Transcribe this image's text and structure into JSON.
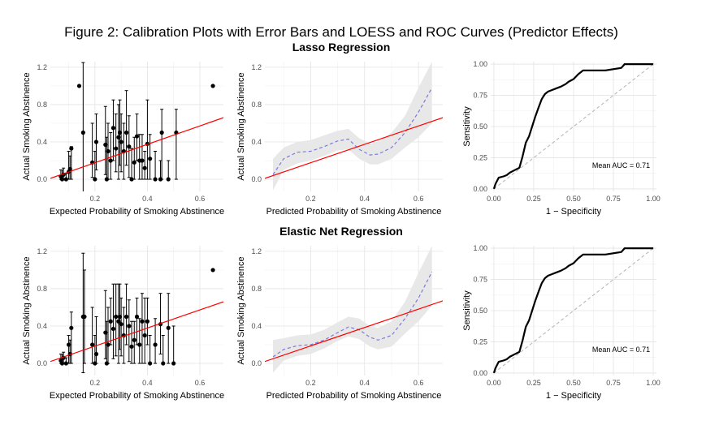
{
  "figure_title": "Figure 2: Calibration Plots with Error Bars and LOESS and ROC Curves (Predictor Effects)",
  "row_titles": [
    "Lasso Regression",
    "Elastic Net Regression"
  ],
  "colors": {
    "fit_line": "#ff0000",
    "loess": "#7b7bdc",
    "band": "#e8e8e8",
    "roc": "#000000",
    "diagonal": "#b3b3b3",
    "points": "#000000"
  },
  "chart_data": [
    {
      "type": "scatter",
      "name": "lasso-calibration-errorbars",
      "xlabel": "Expected Probability of Smoking Abstinence",
      "ylabel": "Actual Smoking Abstinence",
      "xlim": [
        0.03,
        0.69
      ],
      "ylim": [
        -0.13,
        1.26
      ],
      "xticks": [
        0.2,
        0.4,
        0.6
      ],
      "xtick_labels": [
        "0.2",
        "0.4",
        "0.6"
      ],
      "yticks": [
        0.0,
        0.4,
        0.8,
        1.2
      ],
      "ytick_labels": [
        "0.0",
        "0.4",
        "0.8",
        "1.2"
      ],
      "fit_line": [
        [
          0.03,
          0.01
        ],
        [
          0.69,
          0.66
        ]
      ],
      "points": [
        {
          "x": 0.07,
          "y": 0.03,
          "lo": 0.0,
          "hi": 0.1
        },
        {
          "x": 0.075,
          "y": 0.0,
          "lo": 0.0,
          "hi": 0.1
        },
        {
          "x": 0.08,
          "y": 0.05,
          "lo": 0.0,
          "hi": 0.12
        },
        {
          "x": 0.09,
          "y": 0.0,
          "lo": 0.0,
          "hi": 0.06
        },
        {
          "x": 0.1,
          "y": 0.08,
          "lo": 0.0,
          "hi": 0.3
        },
        {
          "x": 0.105,
          "y": 0.11,
          "lo": 0.0,
          "hi": 0.25
        },
        {
          "x": 0.11,
          "y": 0.33,
          "lo": 0.0,
          "hi": 0.35
        },
        {
          "x": 0.14,
          "y": 1.0,
          "lo": 1.0,
          "hi": 1.0
        },
        {
          "x": 0.155,
          "y": 0.5,
          "lo": -0.15,
          "hi": 1.25
        },
        {
          "x": 0.19,
          "y": 0.18,
          "lo": 0.02,
          "hi": 0.6
        },
        {
          "x": 0.2,
          "y": 0.0,
          "lo": 0.0,
          "hi": 0.3
        },
        {
          "x": 0.205,
          "y": 0.4,
          "lo": 0.1,
          "hi": 0.7
        },
        {
          "x": 0.24,
          "y": 0.37,
          "lo": 0.05,
          "hi": 0.78
        },
        {
          "x": 0.245,
          "y": 0.0,
          "lo": 0.0,
          "hi": 0.45
        },
        {
          "x": 0.25,
          "y": 0.3,
          "lo": 0.0,
          "hi": 0.6
        },
        {
          "x": 0.26,
          "y": 0.2,
          "lo": 0.0,
          "hi": 0.5
        },
        {
          "x": 0.27,
          "y": 0.55,
          "lo": 0.2,
          "hi": 0.85
        },
        {
          "x": 0.28,
          "y": 0.33,
          "lo": 0.08,
          "hi": 0.7
        },
        {
          "x": 0.29,
          "y": 0.45,
          "lo": 0.0,
          "hi": 0.8
        },
        {
          "x": 0.295,
          "y": 0.5,
          "lo": 0.15,
          "hi": 0.85
        },
        {
          "x": 0.3,
          "y": 0.4,
          "lo": 0.08,
          "hi": 0.7
        },
        {
          "x": 0.31,
          "y": 0.3,
          "lo": 0.0,
          "hi": 0.6
        },
        {
          "x": 0.32,
          "y": 0.5,
          "lo": 0.15,
          "hi": 0.95
        },
        {
          "x": 0.33,
          "y": 0.35,
          "lo": 0.02,
          "hi": 0.68
        },
        {
          "x": 0.34,
          "y": 0.0,
          "lo": 0.0,
          "hi": 0.33
        },
        {
          "x": 0.35,
          "y": 0.18,
          "lo": 0.0,
          "hi": 0.45
        },
        {
          "x": 0.36,
          "y": 0.46,
          "lo": 0.2,
          "hi": 0.7
        },
        {
          "x": 0.37,
          "y": 0.2,
          "lo": 0.0,
          "hi": 0.48
        },
        {
          "x": 0.38,
          "y": 0.2,
          "lo": 0.0,
          "hi": 0.48
        },
        {
          "x": 0.39,
          "y": 0.12,
          "lo": 0.0,
          "hi": 0.3
        },
        {
          "x": 0.4,
          "y": 0.38,
          "lo": 0.0,
          "hi": 0.85
        },
        {
          "x": 0.41,
          "y": 0.22,
          "lo": 0.0,
          "hi": 0.48
        },
        {
          "x": 0.43,
          "y": 0.0,
          "lo": 0.0,
          "hi": 0.3
        },
        {
          "x": 0.45,
          "y": 0.0,
          "lo": 0.0,
          "hi": 0.2
        },
        {
          "x": 0.455,
          "y": 0.5,
          "lo": 0.0,
          "hi": 0.75
        },
        {
          "x": 0.48,
          "y": 0.0,
          "lo": 0.0,
          "hi": 0.2
        },
        {
          "x": 0.51,
          "y": 0.5,
          "lo": 0.0,
          "hi": 0.75
        },
        {
          "x": 0.65,
          "y": 1.0,
          "lo": 1.0,
          "hi": 1.0
        }
      ]
    },
    {
      "type": "line",
      "name": "lasso-calibration-loess",
      "xlabel": "Predicted Probability of Smoking Abstinence",
      "ylabel": "Actual Smoking Abstinence",
      "xlim": [
        0.03,
        0.69
      ],
      "ylim": [
        -0.13,
        1.26
      ],
      "xticks": [
        0.2,
        0.4,
        0.6
      ],
      "xtick_labels": [
        "0.2",
        "0.4",
        "0.6"
      ],
      "yticks": [
        0.0,
        0.4,
        0.8,
        1.2
      ],
      "ytick_labels": [
        "0.0",
        "0.4",
        "0.8",
        "1.2"
      ],
      "fit_line": [
        [
          0.03,
          0.01
        ],
        [
          0.69,
          0.66
        ]
      ],
      "loess": {
        "x": [
          0.06,
          0.1,
          0.15,
          0.2,
          0.25,
          0.3,
          0.34,
          0.38,
          0.42,
          0.45,
          0.5,
          0.55,
          0.6,
          0.65
        ],
        "y": [
          0.05,
          0.22,
          0.29,
          0.3,
          0.35,
          0.41,
          0.43,
          0.32,
          0.26,
          0.27,
          0.34,
          0.5,
          0.72,
          0.98
        ],
        "lo": [
          -0.12,
          0.1,
          0.17,
          0.2,
          0.25,
          0.31,
          0.32,
          0.22,
          0.16,
          0.16,
          0.22,
          0.34,
          0.45,
          0.6
        ],
        "hi": [
          0.22,
          0.34,
          0.4,
          0.42,
          0.47,
          0.52,
          0.54,
          0.44,
          0.38,
          0.4,
          0.5,
          0.68,
          0.98,
          1.26
        ]
      }
    },
    {
      "type": "line",
      "name": "lasso-roc",
      "xlabel": "1 − Specificity",
      "ylabel": "Sensitivity",
      "xlim": [
        -0.02,
        1.02
      ],
      "ylim": [
        -0.02,
        1.02
      ],
      "xticks": [
        0,
        0.25,
        0.5,
        0.75,
        1
      ],
      "xtick_labels": [
        "0.00",
        "0.25",
        "0.50",
        "0.75",
        "1.00"
      ],
      "yticks": [
        0,
        0.25,
        0.5,
        0.75,
        1
      ],
      "ytick_labels": [
        "0.00",
        "0.25",
        "0.50",
        "0.75",
        "1.00"
      ],
      "annotation": "Mean AUC = 0.71",
      "roc": {
        "x": [
          0,
          0.01,
          0.03,
          0.06,
          0.08,
          0.1,
          0.13,
          0.16,
          0.18,
          0.2,
          0.22,
          0.24,
          0.26,
          0.28,
          0.3,
          0.32,
          0.34,
          0.36,
          0.38,
          0.42,
          0.45,
          0.47,
          0.5,
          0.53,
          0.56,
          0.6,
          0.7,
          0.8,
          0.82,
          0.9,
          1.0
        ],
        "y": [
          0,
          0.04,
          0.09,
          0.1,
          0.11,
          0.13,
          0.15,
          0.17,
          0.26,
          0.37,
          0.42,
          0.5,
          0.58,
          0.65,
          0.72,
          0.76,
          0.78,
          0.79,
          0.8,
          0.82,
          0.84,
          0.86,
          0.88,
          0.92,
          0.95,
          0.95,
          0.95,
          0.97,
          1.0,
          1.0,
          1.0
        ]
      }
    },
    {
      "type": "scatter",
      "name": "elasticnet-calibration-errorbars",
      "xlabel": "Expected Probability of Smoking Abstinence",
      "ylabel": "Actual Smoking Abstinence",
      "xlim": [
        0.03,
        0.69
      ],
      "ylim": [
        -0.13,
        1.26
      ],
      "xticks": [
        0.2,
        0.4,
        0.6
      ],
      "xtick_labels": [
        "0.2",
        "0.4",
        "0.6"
      ],
      "yticks": [
        0.0,
        0.4,
        0.8,
        1.2
      ],
      "ytick_labels": [
        "0.0",
        "0.4",
        "0.8",
        "1.2"
      ],
      "fit_line": [
        [
          0.03,
          0.02
        ],
        [
          0.69,
          0.66
        ]
      ],
      "points": [
        {
          "x": 0.07,
          "y": 0.03,
          "lo": 0.0,
          "hi": 0.1
        },
        {
          "x": 0.075,
          "y": 0.0,
          "lo": 0.0,
          "hi": 0.1
        },
        {
          "x": 0.08,
          "y": 0.06,
          "lo": 0.0,
          "hi": 0.12
        },
        {
          "x": 0.09,
          "y": 0.0,
          "lo": 0.0,
          "hi": 0.06
        },
        {
          "x": 0.1,
          "y": 0.2,
          "lo": 0.0,
          "hi": 0.3
        },
        {
          "x": 0.105,
          "y": 0.1,
          "lo": 0.0,
          "hi": 0.25
        },
        {
          "x": 0.11,
          "y": 0.38,
          "lo": 0.0,
          "hi": 0.55
        },
        {
          "x": 0.155,
          "y": 0.5,
          "lo": -0.1,
          "hi": 1.18
        },
        {
          "x": 0.16,
          "y": 0.5,
          "lo": 0.0,
          "hi": 1.0
        },
        {
          "x": 0.19,
          "y": 0.2,
          "lo": 0.0,
          "hi": 0.6
        },
        {
          "x": 0.2,
          "y": 0.0,
          "lo": 0.0,
          "hi": 0.3
        },
        {
          "x": 0.205,
          "y": 0.1,
          "lo": 0.0,
          "hi": 0.5
        },
        {
          "x": 0.24,
          "y": 0.33,
          "lo": 0.05,
          "hi": 0.78
        },
        {
          "x": 0.245,
          "y": 0.0,
          "lo": 0.0,
          "hi": 0.45
        },
        {
          "x": 0.25,
          "y": 0.2,
          "lo": 0.0,
          "hi": 0.6
        },
        {
          "x": 0.26,
          "y": 0.45,
          "lo": 0.2,
          "hi": 0.7
        },
        {
          "x": 0.27,
          "y": 0.37,
          "lo": 0.05,
          "hi": 0.85
        },
        {
          "x": 0.28,
          "y": 0.5,
          "lo": 0.08,
          "hi": 0.85
        },
        {
          "x": 0.29,
          "y": 0.45,
          "lo": 0.0,
          "hi": 0.85
        },
        {
          "x": 0.295,
          "y": 0.5,
          "lo": 0.15,
          "hi": 0.85
        },
        {
          "x": 0.3,
          "y": 0.42,
          "lo": 0.08,
          "hi": 0.7
        },
        {
          "x": 0.31,
          "y": 0.3,
          "lo": 0.0,
          "hi": 0.6
        },
        {
          "x": 0.32,
          "y": 0.5,
          "lo": 0.2,
          "hi": 0.85
        },
        {
          "x": 0.33,
          "y": 0.4,
          "lo": 0.02,
          "hi": 0.68
        },
        {
          "x": 0.34,
          "y": 0.18,
          "lo": 0.0,
          "hi": 0.45
        },
        {
          "x": 0.35,
          "y": 0.25,
          "lo": 0.0,
          "hi": 0.45
        },
        {
          "x": 0.36,
          "y": 0.5,
          "lo": 0.2,
          "hi": 0.7
        },
        {
          "x": 0.37,
          "y": 0.2,
          "lo": 0.0,
          "hi": 0.48
        },
        {
          "x": 0.38,
          "y": 0.45,
          "lo": 0.0,
          "hi": 0.75
        },
        {
          "x": 0.39,
          "y": 0.3,
          "lo": 0.0,
          "hi": 0.7
        },
        {
          "x": 0.4,
          "y": 0.45,
          "lo": 0.2,
          "hi": 0.7
        },
        {
          "x": 0.41,
          "y": 0.0,
          "lo": 0.0,
          "hi": 0.3
        },
        {
          "x": 0.43,
          "y": 0.2,
          "lo": 0.0,
          "hi": 0.48
        },
        {
          "x": 0.45,
          "y": 0.42,
          "lo": 0.1,
          "hi": 0.75
        },
        {
          "x": 0.46,
          "y": 0.0,
          "lo": 0.0,
          "hi": 0.3
        },
        {
          "x": 0.48,
          "y": 0.38,
          "lo": 0.0,
          "hi": 0.75
        },
        {
          "x": 0.5,
          "y": 0.0,
          "lo": 0.0,
          "hi": 0.4
        },
        {
          "x": 0.65,
          "y": 1.0,
          "lo": 1.0,
          "hi": 1.0
        }
      ]
    },
    {
      "type": "line",
      "name": "elasticnet-calibration-loess",
      "xlabel": "Predicted Probability of Smoking Abstinence",
      "ylabel": "Actual Smoking Abstinence",
      "xlim": [
        0.03,
        0.69
      ],
      "ylim": [
        -0.13,
        1.26
      ],
      "xticks": [
        0.2,
        0.4,
        0.6
      ],
      "xtick_labels": [
        "0.2",
        "0.4",
        "0.6"
      ],
      "yticks": [
        0.0,
        0.4,
        0.8,
        1.2
      ],
      "ytick_labels": [
        "0.0",
        "0.4",
        "0.8",
        "1.2"
      ],
      "fit_line": [
        [
          0.03,
          0.02
        ],
        [
          0.69,
          0.67
        ]
      ],
      "loess": {
        "x": [
          0.06,
          0.1,
          0.15,
          0.2,
          0.25,
          0.3,
          0.34,
          0.38,
          0.42,
          0.45,
          0.5,
          0.55,
          0.6,
          0.65
        ],
        "y": [
          0.07,
          0.15,
          0.19,
          0.2,
          0.25,
          0.33,
          0.39,
          0.36,
          0.28,
          0.25,
          0.3,
          0.48,
          0.7,
          0.98
        ],
        "lo": [
          -0.1,
          0.03,
          0.08,
          0.1,
          0.16,
          0.24,
          0.29,
          0.26,
          0.18,
          0.15,
          0.18,
          0.32,
          0.45,
          0.62
        ],
        "hi": [
          0.25,
          0.27,
          0.3,
          0.31,
          0.36,
          0.44,
          0.5,
          0.48,
          0.4,
          0.38,
          0.45,
          0.66,
          0.97,
          1.26
        ]
      }
    },
    {
      "type": "line",
      "name": "elasticnet-roc",
      "xlabel": "1 − Specificity",
      "ylabel": "Sensitivity",
      "xlim": [
        -0.02,
        1.02
      ],
      "ylim": [
        -0.02,
        1.02
      ],
      "xticks": [
        0,
        0.25,
        0.5,
        0.75,
        1
      ],
      "xtick_labels": [
        "0.00",
        "0.25",
        "0.50",
        "0.75",
        "1.00"
      ],
      "yticks": [
        0,
        0.25,
        0.5,
        0.75,
        1
      ],
      "ytick_labels": [
        "0.00",
        "0.25",
        "0.50",
        "0.75",
        "1.00"
      ],
      "annotation": "Mean AUC = 0.71",
      "roc": {
        "x": [
          0,
          0.01,
          0.03,
          0.06,
          0.08,
          0.1,
          0.13,
          0.16,
          0.18,
          0.2,
          0.22,
          0.24,
          0.26,
          0.28,
          0.3,
          0.32,
          0.34,
          0.36,
          0.38,
          0.42,
          0.45,
          0.47,
          0.5,
          0.53,
          0.56,
          0.6,
          0.7,
          0.8,
          0.82,
          0.9,
          1.0
        ],
        "y": [
          0,
          0.04,
          0.09,
          0.1,
          0.11,
          0.13,
          0.15,
          0.17,
          0.26,
          0.37,
          0.42,
          0.5,
          0.58,
          0.65,
          0.72,
          0.76,
          0.78,
          0.79,
          0.8,
          0.82,
          0.84,
          0.86,
          0.88,
          0.92,
          0.95,
          0.95,
          0.95,
          0.97,
          1.0,
          1.0,
          1.0
        ]
      }
    }
  ]
}
